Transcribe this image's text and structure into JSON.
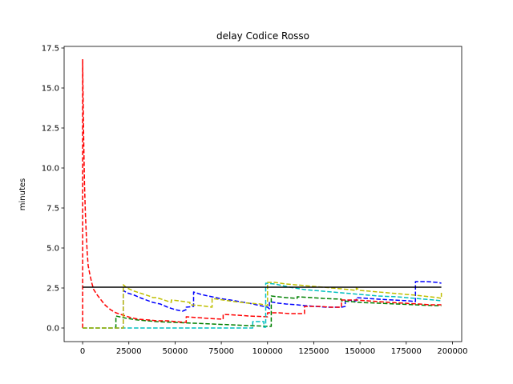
{
  "chart_data": {
    "type": "line",
    "title": "delay Codice Rosso",
    "xlabel": "",
    "ylabel": "minutes",
    "xlim": [
      -10000,
      205000
    ],
    "ylim": [
      -0.85,
      17.6
    ],
    "x_ticks": [
      0,
      25000,
      50000,
      75000,
      100000,
      125000,
      150000,
      175000,
      200000
    ],
    "y_ticks": [
      0.0,
      2.5,
      5.0,
      7.5,
      10.0,
      12.5,
      15.0,
      17.5
    ],
    "x_tick_labels": [
      "0",
      "25000",
      "50000",
      "75000",
      "100000",
      "125000",
      "150000",
      "175000",
      "200000"
    ],
    "y_tick_labels": [
      "0.0",
      "2.5",
      "5.0",
      "7.5",
      "10.0",
      "12.5",
      "15.0",
      "17.5"
    ],
    "grid": false,
    "series": [
      {
        "color": "#0000ff",
        "style": "dashed",
        "x": [
          0,
          1000,
          22000,
          22000,
          24000,
          28000,
          32000,
          38000,
          42000,
          46000,
          50000,
          54000,
          56000,
          56000,
          60000,
          60000,
          64000,
          68000,
          70000,
          74000,
          80000,
          90000,
          100000,
          101000,
          101000,
          106000,
          110000,
          116000,
          120000,
          126000,
          132000,
          140000,
          142000,
          142000,
          148000,
          148000,
          154000,
          160000,
          168000,
          176000,
          180000,
          180000,
          186000,
          192000,
          194000
        ],
        "y": [
          0,
          0,
          0,
          2.35,
          2.2,
          2.05,
          1.85,
          1.6,
          1.5,
          1.3,
          1.15,
          1.05,
          1.15,
          1.3,
          1.35,
          2.25,
          2.1,
          2.0,
          1.95,
          1.85,
          1.75,
          1.55,
          1.3,
          1.2,
          1.65,
          1.55,
          1.5,
          1.45,
          1.4,
          1.35,
          1.3,
          1.3,
          1.35,
          1.75,
          1.7,
          1.9,
          1.85,
          1.8,
          1.75,
          1.7,
          1.65,
          2.9,
          2.9,
          2.85,
          2.8
        ]
      },
      {
        "color": "#008000",
        "style": "dashed",
        "x": [
          0,
          17000,
          18000,
          18000,
          24000,
          30000,
          40000,
          50000,
          60000,
          70000,
          80000,
          90000,
          102000,
          102000,
          106000,
          110000,
          116000,
          116000,
          124000,
          130000,
          140000,
          140000,
          150000,
          160000,
          170000,
          180000,
          190000,
          194000
        ],
        "y": [
          0,
          0,
          0.05,
          0.75,
          0.6,
          0.5,
          0.4,
          0.35,
          0.3,
          0.25,
          0.2,
          0.15,
          0.1,
          2.0,
          1.95,
          1.9,
          1.85,
          1.95,
          1.9,
          1.85,
          1.8,
          1.7,
          1.6,
          1.55,
          1.5,
          1.45,
          1.4,
          1.4
        ]
      },
      {
        "color": "#ff0000",
        "style": "dashed",
        "x": [
          0,
          0,
          200,
          600,
          1000,
          1500,
          2000,
          2500,
          3000,
          4000,
          5000,
          6000,
          8000,
          10000,
          12000,
          15000,
          18000,
          22000,
          26000,
          30000,
          36000,
          40000,
          46000,
          50000,
          56000,
          56000,
          62000,
          68000,
          76000,
          76000,
          84000,
          90000,
          100000,
          100000,
          106000,
          112000,
          120000,
          120000,
          128000,
          134000,
          140000,
          140000,
          148000,
          154000,
          160000,
          166000,
          174000,
          182000,
          188000,
          194000
        ],
        "y": [
          0,
          16.8,
          15.0,
          11.5,
          9.0,
          7.2,
          5.8,
          4.7,
          3.9,
          3.3,
          2.8,
          2.4,
          2.05,
          1.75,
          1.45,
          1.15,
          0.95,
          0.8,
          0.65,
          0.55,
          0.5,
          0.45,
          0.45,
          0.4,
          0.35,
          0.7,
          0.65,
          0.6,
          0.55,
          0.85,
          0.8,
          0.75,
          0.7,
          0.95,
          0.95,
          0.9,
          0.9,
          1.35,
          1.35,
          1.3,
          1.3,
          1.75,
          1.75,
          1.7,
          1.65,
          1.6,
          1.55,
          1.5,
          1.45,
          1.45
        ]
      },
      {
        "color": "#00bfbf",
        "style": "dashed",
        "x": [
          0,
          40000,
          80000,
          92000,
          92000,
          98000,
          98000,
          99000,
          99000,
          104000,
          112000,
          120000,
          130000,
          140000,
          150000,
          160000,
          170000,
          180000,
          190000,
          194000
        ],
        "y": [
          0,
          0,
          0,
          0,
          0.4,
          0.4,
          0.05,
          0.05,
          2.8,
          2.75,
          2.55,
          2.4,
          2.3,
          2.2,
          2.1,
          2.0,
          1.95,
          1.85,
          1.75,
          1.7
        ]
      },
      {
        "color": "#bfbf00",
        "style": "dashed",
        "x": [
          0,
          22000,
          22000,
          24000,
          28000,
          32000,
          36000,
          38000,
          40000,
          44000,
          48000,
          48000,
          52000,
          58000,
          58000,
          64000,
          70000,
          70000,
          76000,
          82000,
          90000,
          96000,
          100000,
          100000,
          104000,
          110000,
          120000,
          130000,
          140000,
          148000,
          148000,
          150000,
          160000,
          170000,
          180000,
          188000,
          192000,
          194000,
          194000
        ],
        "y": [
          0,
          0,
          2.7,
          2.5,
          2.3,
          2.15,
          2.0,
          1.9,
          1.9,
          1.75,
          1.6,
          1.75,
          1.7,
          1.6,
          1.45,
          1.4,
          1.3,
          1.85,
          1.75,
          1.65,
          1.55,
          1.5,
          1.4,
          2.85,
          2.85,
          2.75,
          2.65,
          2.55,
          2.45,
          2.35,
          2.5,
          2.35,
          2.25,
          2.15,
          2.05,
          1.95,
          1.9,
          1.85,
          2.2
        ]
      },
      {
        "color": "#000000",
        "style": "solid",
        "x": [
          0,
          194000
        ],
        "y": [
          2.55,
          2.55
        ]
      }
    ]
  }
}
